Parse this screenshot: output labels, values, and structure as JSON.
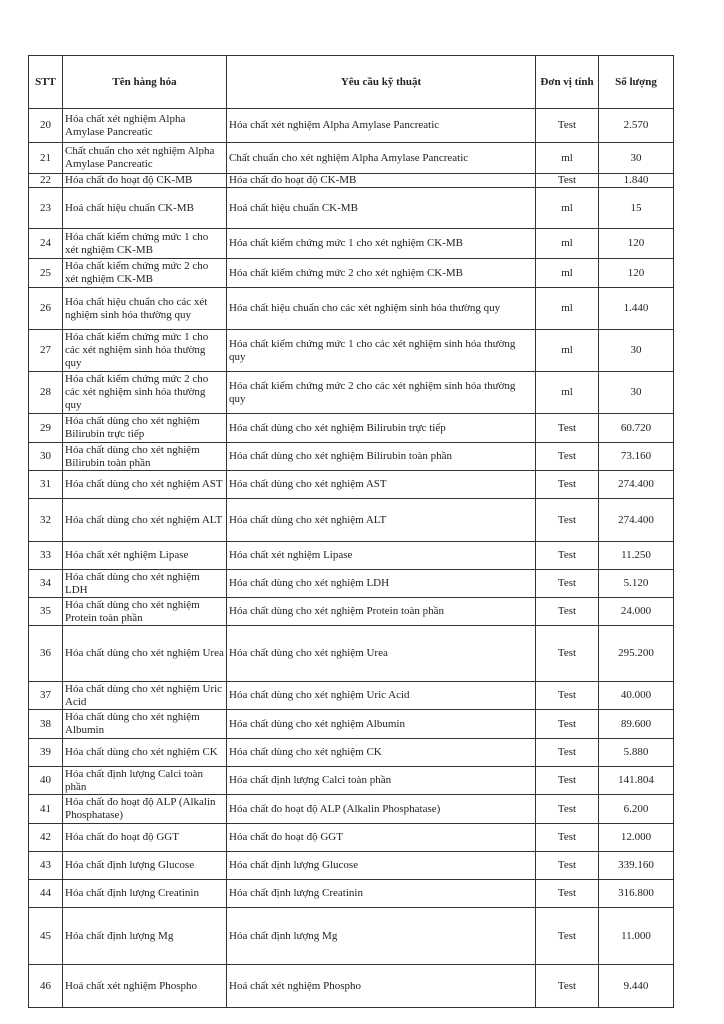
{
  "table": {
    "header": [
      "STT",
      "Tên hàng hóa",
      "Yêu cầu kỹ thuật",
      "Đơn vị tính",
      "Số lượng"
    ],
    "rows": [
      [
        "20",
        "Hóa chất xét nghiệm Alpha Amylase Pancreatic",
        "Hóa chất xét nghiệm Alpha Amylase Pancreatic",
        "Test",
        "2.570"
      ],
      [
        "21",
        "Chất chuẩn cho xét nghiệm Alpha Amylase Pancreatic",
        "Chất chuẩn cho xét nghiệm Alpha Amylase Pancreatic",
        "ml",
        "30"
      ],
      [
        "22",
        "Hóa chất đo hoạt độ CK-MB",
        "Hóa chất đo hoạt độ CK-MB",
        "Test",
        "1.840"
      ],
      [
        "23",
        "Hoá chất hiệu chuẩn CK-MB",
        "Hoá chất hiệu chuẩn CK-MB",
        "ml",
        "15"
      ],
      [
        "24",
        "Hóa chất kiểm chứng mức 1 cho xét nghiệm CK-MB",
        "Hóa chất kiểm chứng mức 1 cho xét nghiệm CK-MB",
        "ml",
        "120"
      ],
      [
        "25",
        "Hóa chất kiểm chứng mức 2 cho xét nghiệm CK-MB",
        "Hóa chất kiểm chứng mức 2 cho xét nghiệm CK-MB",
        "ml",
        "120"
      ],
      [
        "26",
        "Hóa chất hiệu chuẩn cho các xét nghiệm sinh hóa thường quy",
        "Hóa chất hiệu chuẩn cho các xét nghiệm sinh hóa thường quy",
        "ml",
        "1.440"
      ],
      [
        "27",
        "Hóa chất kiểm chứng mức 1 cho các xét nghiệm sinh hóa thường quy",
        "Hóa chất kiểm chứng mức 1 cho các xét nghiệm sinh hóa thường quy",
        "ml",
        "30"
      ],
      [
        "28",
        "Hóa chất kiểm chứng mức 2 cho các xét nghiệm sinh hóa thường quy",
        "Hóa chất kiểm chứng mức 2 cho các xét nghiệm sinh hóa thường quy",
        "ml",
        "30"
      ],
      [
        "29",
        "Hóa chất dùng cho xét nghiệm Bilirubin trực tiếp",
        "Hóa chất dùng cho xét nghiệm Bilirubin trực tiếp",
        "Test",
        "60.720"
      ],
      [
        "30",
        "Hóa chất dùng cho xét nghiệm Bilirubin toàn phần",
        "Hóa chất dùng cho xét nghiệm Bilirubin toàn phần",
        "Test",
        "73.160"
      ],
      [
        "31",
        "Hóa chất dùng cho xét nghiệm AST",
        "Hóa chất dùng cho xét nghiệm AST",
        "Test",
        "274.400"
      ],
      [
        "32",
        "Hóa chất dùng cho xét nghiệm ALT",
        "Hóa chất dùng cho xét nghiệm ALT",
        "Test",
        "274.400"
      ],
      [
        "33",
        "Hóa chất xét nghiệm Lipase",
        "Hóa chất xét nghiệm Lipase",
        "Test",
        "11.250"
      ],
      [
        "34",
        "Hóa chất dùng cho xét nghiệm LDH",
        "Hóa chất dùng cho xét nghiệm LDH",
        "Test",
        "5.120"
      ],
      [
        "35",
        "Hóa chất dùng cho xét nghiệm Protein toàn phần",
        "Hóa chất dùng cho xét nghiệm Protein toàn phần",
        "Test",
        "24.000"
      ],
      [
        "36",
        "Hóa chất dùng cho xét nghiệm Urea",
        "Hóa chất dùng cho xét nghiệm Urea",
        "Test",
        "295.200"
      ],
      [
        "37",
        "Hóa chất dùng cho xét nghiệm Uric Acid",
        "Hóa chất dùng cho xét nghiệm Uric Acid",
        "Test",
        "40.000"
      ],
      [
        "38",
        "Hóa chất dùng cho xét nghiệm Albumin",
        "Hóa chất dùng cho xét nghiệm Albumin",
        "Test",
        "89.600"
      ],
      [
        "39",
        "Hóa chất dùng cho xét nghiệm CK",
        "Hóa chất dùng cho xét nghiệm CK",
        "Test",
        "5.880"
      ],
      [
        "40",
        "Hóa chất định lượng Calci toàn phần",
        "Hóa chất định lượng Calci toàn phần",
        "Test",
        "141.804"
      ],
      [
        "41",
        "Hóa chất đo hoạt độ ALP (Alkalin Phosphatase)",
        "Hóa chất đo hoạt độ ALP (Alkalin Phosphatase)",
        "Test",
        "6.200"
      ],
      [
        "42",
        "Hóa chất đo hoạt độ GGT",
        "Hóa chất đo hoạt độ GGT",
        "Test",
        "12.000"
      ],
      [
        "43",
        "Hóa chất định lượng Glucose",
        "Hóa chất định lượng Glucose",
        "Test",
        "339.160"
      ],
      [
        "44",
        "Hóa chất định lượng Creatinin",
        "Hóa chất định lượng Creatinin",
        "Test",
        "316.800"
      ],
      [
        "45",
        "Hóa chất định lượng Mg",
        "Hóa chất định lượng Mg",
        "Test",
        "11.000"
      ],
      [
        "46",
        "Hoá chất xét nghiệm Phospho",
        "Hoá chất xét nghiệm Phospho",
        "Test",
        "9.440"
      ]
    ]
  }
}
